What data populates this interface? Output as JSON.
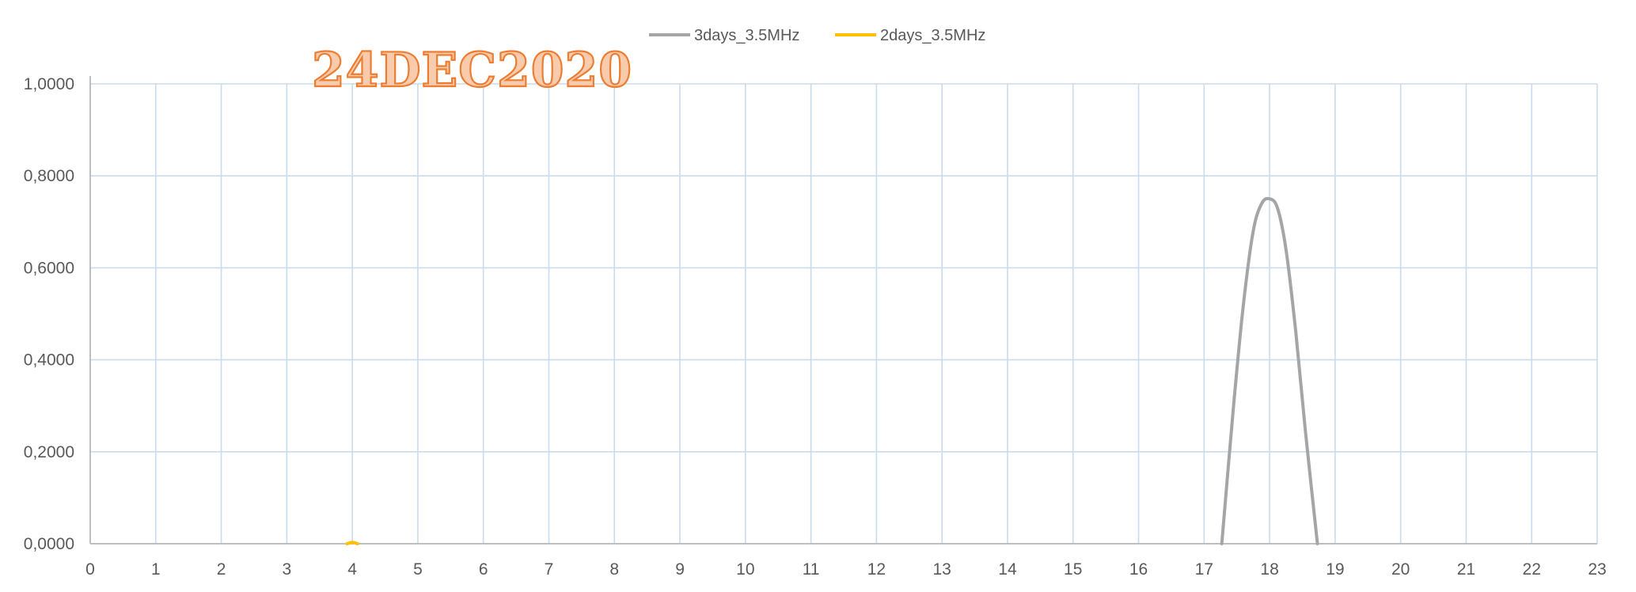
{
  "overlay_text": "24DEC2020",
  "chart_data": {
    "type": "line",
    "title": "",
    "xlabel": "",
    "ylabel": "",
    "xlim": [
      0,
      23
    ],
    "ylim": [
      0,
      1
    ],
    "x_ticks": [
      0,
      1,
      2,
      3,
      4,
      5,
      6,
      7,
      8,
      9,
      10,
      11,
      12,
      13,
      14,
      15,
      16,
      17,
      18,
      19,
      20,
      21,
      22,
      23
    ],
    "y_ticks": [
      0,
      0.2,
      0.4,
      0.6,
      0.8,
      1.0
    ],
    "y_tick_labels": [
      "0,0000",
      "0,2000",
      "0,4000",
      "0,6000",
      "0,8000",
      "1,0000"
    ],
    "grid": true,
    "legend_position": "top-center",
    "series": [
      {
        "name": "3days_3.5MHz",
        "color": "#a5a5a5",
        "x": [
          17.27,
          17.45,
          17.6,
          17.75,
          17.88,
          18.0,
          18.12,
          18.25,
          18.4,
          18.55,
          18.73
        ],
        "y": [
          0.0,
          0.3,
          0.52,
          0.68,
          0.74,
          0.75,
          0.73,
          0.64,
          0.46,
          0.24,
          0.0
        ]
      },
      {
        "name": "2days_3.5MHz",
        "color": "#ffc000",
        "x": [
          3.92,
          4.0,
          4.08
        ],
        "y": [
          0.0,
          0.003,
          0.0
        ]
      }
    ]
  }
}
